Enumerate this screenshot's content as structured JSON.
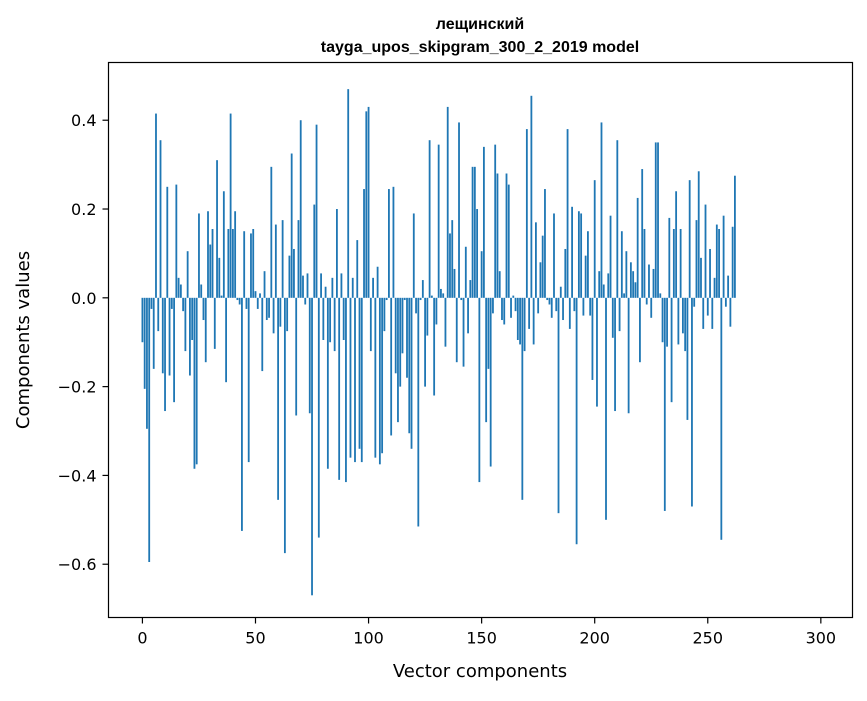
{
  "chart_data": {
    "type": "bar",
    "title_line1": "лещинский",
    "title_line2": "tayga_upos_skipgram_300_2_2019 model",
    "xlabel": "Vector components",
    "ylabel": "Components values",
    "xlim": [
      -15,
      314
    ],
    "ylim": [
      -0.72,
      0.53
    ],
    "xticks": [
      0,
      50,
      100,
      150,
      200,
      250,
      300
    ],
    "xtick_labels": [
      "0",
      "50",
      "100",
      "150",
      "200",
      "250",
      "300"
    ],
    "yticks": [
      -0.6,
      -0.4,
      -0.2,
      0.0,
      0.2,
      0.4
    ],
    "ytick_labels": [
      "−0.6",
      "−0.4",
      "−0.2",
      "0.0",
      "0.2",
      "0.4"
    ],
    "bar_color": "#1f77b4",
    "values": [
      -0.1,
      -0.205,
      -0.295,
      -0.595,
      -0.025,
      -0.16,
      0.415,
      -0.075,
      0.355,
      -0.17,
      -0.255,
      0.25,
      -0.175,
      -0.025,
      -0.235,
      0.255,
      0.045,
      0.03,
      -0.03,
      -0.12,
      0.105,
      -0.175,
      -0.095,
      -0.385,
      -0.375,
      0.19,
      0.03,
      -0.05,
      -0.145,
      0.195,
      0.12,
      0.155,
      -0.115,
      0.31,
      0.09,
      0.005,
      0.24,
      -0.19,
      0.155,
      0.415,
      0.155,
      0.195,
      -0.005,
      -0.015,
      -0.525,
      0.15,
      -0.025,
      -0.37,
      0.145,
      0.155,
      0.015,
      -0.025,
      0.01,
      -0.165,
      0.06,
      -0.05,
      -0.045,
      0.295,
      -0.08,
      0.165,
      -0.455,
      -0.065,
      0.175,
      -0.575,
      -0.075,
      0.095,
      0.325,
      0.11,
      -0.265,
      0.175,
      0.4,
      0.05,
      -0.015,
      0.055,
      -0.26,
      -0.67,
      0.21,
      0.39,
      -0.54,
      0.055,
      -0.095,
      0.025,
      -0.385,
      -0.1,
      0.045,
      -0.12,
      0.2,
      -0.41,
      0.055,
      -0.095,
      -0.415,
      0.47,
      -0.36,
      0.045,
      -0.37,
      0.13,
      -0.34,
      -0.37,
      0.245,
      0.42,
      0.43,
      -0.12,
      0.045,
      -0.36,
      0.07,
      -0.375,
      -0.35,
      -0.075,
      -0.005,
      0.245,
      -0.31,
      0.25,
      -0.17,
      -0.28,
      -0.2,
      -0.125,
      -0.005,
      -0.18,
      -0.305,
      -0.34,
      0.19,
      -0.035,
      -0.515,
      -0.005,
      0.04,
      -0.2,
      -0.085,
      0.355,
      0.005,
      -0.22,
      -0.06,
      0.345,
      0.02,
      0.01,
      -0.11,
      0.43,
      0.145,
      0.175,
      0.065,
      -0.145,
      0.395,
      -0.005,
      -0.155,
      0.115,
      -0.08,
      0.04,
      0.295,
      0.295,
      0.2,
      -0.415,
      0.105,
      0.34,
      -0.28,
      -0.16,
      -0.38,
      -0.035,
      0.345,
      0.28,
      0.06,
      -0.05,
      -0.06,
      0.28,
      0.255,
      -0.045,
      0.005,
      -0.03,
      -0.095,
      -0.105,
      -0.455,
      -0.12,
      0.38,
      -0.07,
      0.455,
      -0.105,
      0.17,
      -0.035,
      0.08,
      0.14,
      0.245,
      -0.005,
      -0.015,
      -0.045,
      0.19,
      -0.03,
      -0.485,
      0.025,
      -0.05,
      0.11,
      0.38,
      -0.07,
      0.205,
      -0.03,
      -0.555,
      0.195,
      0.19,
      -0.04,
      0.095,
      0.15,
      -0.04,
      -0.185,
      0.265,
      -0.245,
      0.06,
      0.395,
      0.03,
      -0.5,
      0.055,
      0.185,
      -0.09,
      -0.255,
      0.355,
      -0.075,
      0.15,
      0.01,
      0.105,
      -0.26,
      0.08,
      0.06,
      0.035,
      0.225,
      -0.145,
      0.29,
      0.155,
      -0.015,
      0.075,
      -0.045,
      0.065,
      0.35,
      0.35,
      0.01,
      -0.1,
      -0.48,
      -0.11,
      0.18,
      -0.235,
      0.155,
      0.24,
      -0.105,
      0.155,
      -0.08,
      -0.12,
      -0.275,
      0.265,
      -0.47,
      -0.02,
      0.175,
      0.285,
      0.09,
      -0.07,
      0.21,
      -0.04,
      0.11,
      -0.07,
      0.045,
      0.165,
      0.155,
      -0.545,
      0.185,
      -0.02,
      0.05,
      -0.065,
      0.16,
      0.275
    ]
  }
}
